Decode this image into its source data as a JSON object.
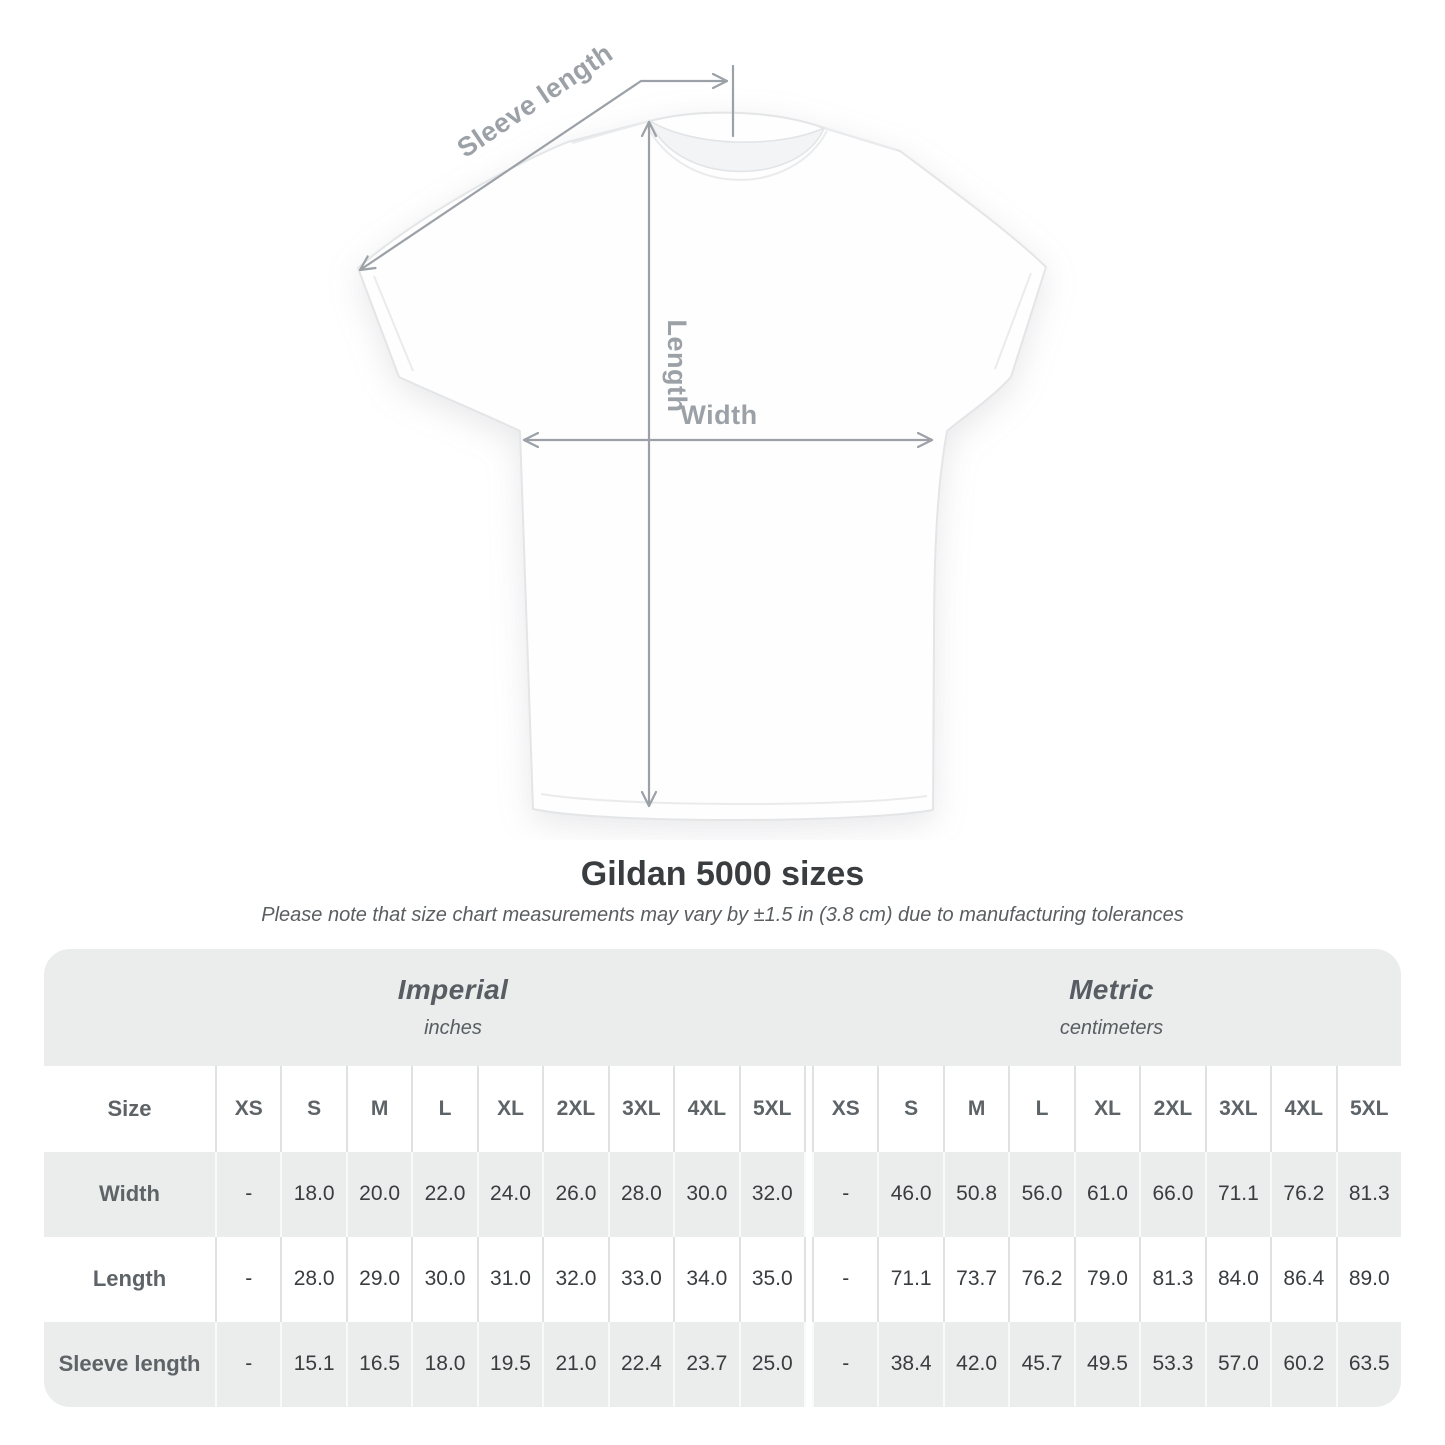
{
  "diagram": {
    "sleeve_length_label": "Sleeve length",
    "length_label": "Length",
    "width_label": "Width"
  },
  "title": "Gildan 5000 sizes",
  "subtitle": "Please note that size chart measurements may vary by ±1.5 in (3.8 cm) due to manufacturing tolerances",
  "table": {
    "size_header": "Size",
    "unit_groups": [
      {
        "name": "Imperial",
        "unit": "inches"
      },
      {
        "name": "Metric",
        "unit": "centimeters"
      }
    ],
    "sizes": [
      "XS",
      "S",
      "M",
      "L",
      "XL",
      "2XL",
      "3XL",
      "4XL",
      "5XL"
    ],
    "rows": [
      {
        "label": "Width",
        "imperial": [
          "-",
          "18.0",
          "20.0",
          "22.0",
          "24.0",
          "26.0",
          "28.0",
          "30.0",
          "32.0"
        ],
        "metric": [
          "-",
          "46.0",
          "50.8",
          "56.0",
          "61.0",
          "66.0",
          "71.1",
          "76.2",
          "81.3"
        ]
      },
      {
        "label": "Length",
        "imperial": [
          "-",
          "28.0",
          "29.0",
          "30.0",
          "31.0",
          "32.0",
          "33.0",
          "34.0",
          "35.0"
        ],
        "metric": [
          "-",
          "71.1",
          "73.7",
          "76.2",
          "79.0",
          "81.3",
          "84.0",
          "86.4",
          "89.0"
        ]
      },
      {
        "label": "Sleeve length",
        "imperial": [
          "-",
          "15.1",
          "16.5",
          "18.0",
          "19.5",
          "21.0",
          "22.4",
          "23.7",
          "25.0"
        ],
        "metric": [
          "-",
          "38.4",
          "42.0",
          "45.7",
          "49.5",
          "53.3",
          "57.0",
          "60.2",
          "63.5"
        ]
      }
    ]
  },
  "colors": {
    "band_gray": "#ebecec",
    "annotation_gray": "#9ba1a6",
    "header_text": "#5d6367",
    "value_text": "#3a3d40"
  }
}
